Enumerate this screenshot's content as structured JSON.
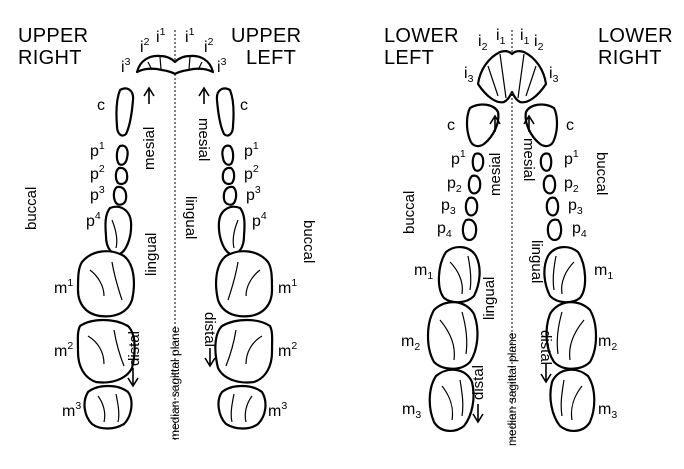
{
  "upper": {
    "right_title_line1": "UPPER",
    "right_title_line2": "RIGHT",
    "left_title_line1": "UPPER",
    "left_title_line2": "LEFT",
    "incisors": [
      "i",
      "i",
      "i"
    ],
    "incisor_nums": [
      "1",
      "2",
      "3"
    ],
    "canine": "c",
    "premolar": "p",
    "premolar_nums": [
      "1",
      "2",
      "3",
      "4"
    ],
    "molar": "m",
    "molar_nums": [
      "1",
      "2",
      "3"
    ],
    "buccal": "buccal",
    "lingual": "lingual",
    "mesial": "mesial",
    "distal": "distal",
    "median_plane": "median sagittal plane"
  },
  "lower": {
    "left_title_line1": "LOWER",
    "left_title_line2": "LEFT",
    "right_title_line1": "LOWER",
    "right_title_line2": "RIGHT",
    "incisor": "i",
    "incisor_nums": [
      "1",
      "2",
      "3"
    ],
    "canine": "c",
    "premolar": "p",
    "premolar_nums": [
      "1",
      "2",
      "3",
      "4"
    ],
    "molar": "m",
    "molar_nums": [
      "1",
      "2",
      "3"
    ],
    "buccal": "buccal",
    "lingual": "lingual",
    "mesial": "mesial",
    "distal": "distal",
    "median_plane": "median sagittal plane"
  }
}
